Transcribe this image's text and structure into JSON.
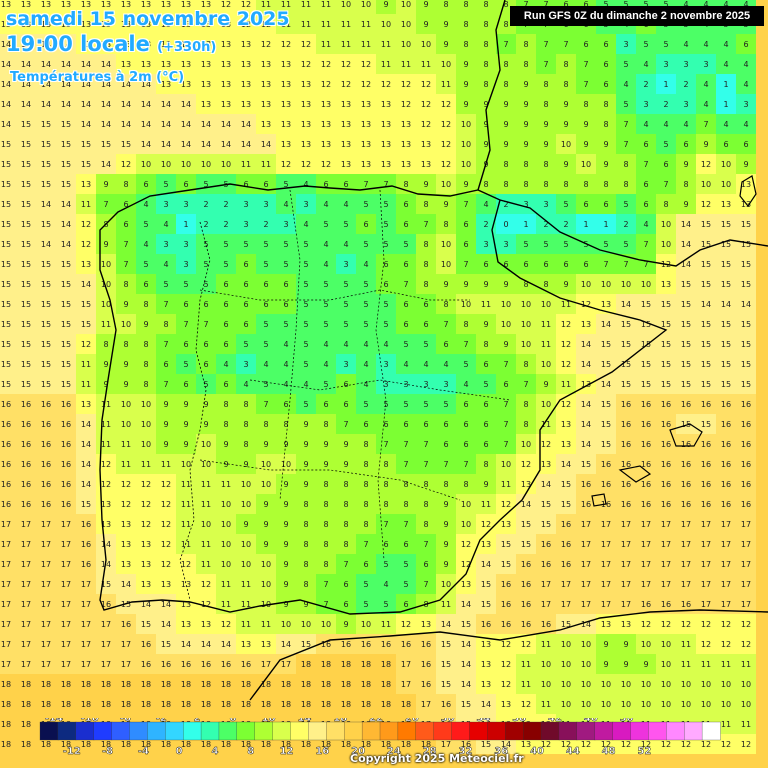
{
  "header": {
    "date": "samedi 15 novembre 2025",
    "time": "19:00 locale",
    "offset": "(+330h)",
    "variable": "Températures à 2m (°C)"
  },
  "run_label": "Run GFS 0Z du dimanche 2 novembre 2025",
  "copyright": "Copyright 2025 Meteociel.fr",
  "legend": {
    "top_labels": [
      "-14",
      "-10",
      "-6",
      "-2",
      "2",
      "6",
      "10",
      "14",
      "18",
      "22",
      "26",
      "30",
      "34",
      "38",
      "42",
      "46",
      "50"
    ],
    "bottom_labels": [
      "-12",
      "-8",
      "-4",
      "0",
      "4",
      "8",
      "12",
      "16",
      "20",
      "24",
      "28",
      "32",
      "36",
      "40",
      "44",
      "48",
      "52"
    ],
    "colors": [
      "#0a1050",
      "#0d2a80",
      "#1a2ecf",
      "#1f3cff",
      "#2f5fff",
      "#2f8cff",
      "#2fb4ff",
      "#33d6ff",
      "#33ffea",
      "#33ffb0",
      "#4cff66",
      "#7cff33",
      "#aeff33",
      "#d9ff4c",
      "#ffff66",
      "#fff08a",
      "#ffe066",
      "#ffd24a",
      "#ffb833",
      "#ff9a1a",
      "#ff7a00",
      "#ff5a1a",
      "#ff3a1a",
      "#ff1a1a",
      "#e60000",
      "#cc0000",
      "#a00000",
      "#880000",
      "#700a2a",
      "#88105a",
      "#a01a80",
      "#c01aa0",
      "#d81ac0",
      "#ee33dd",
      "#ff55ee",
      "#ff88ff",
      "#ffaaff",
      "#ffffff"
    ]
  },
  "field": {
    "rows": [
      "13 13 13 13 13 13 13 13 13 13 13 12 12 11 11 11 11 10 10 9 10 9 8 8 8 8 7 7 6 6 5 5 5 5 4 4 4 4",
      "13 13 13 13 13 13 13 13 13 13 13 13 12 12 11 11 11 11 11 10 10 9 9 8 8 8 7 7 6 6 5 4 6 5 5 4 5 5",
      "14 14 14 14 13 13 13 13 13 13 13 13 13 12 12 12 11 11 11 11 10 10 9 8 8 7 8 7 7 6 6 3 5 5 4 4 4 6",
      "14 14 14 14 14 14 13 13 13 13 13 13 13 13 13 12 12 12 12 11 11 11 10 9 8 8 8 7 8 7 6 5 4 3 3 3 4 4",
      "14 14 14 14 14 14 14 14 13 13 13 13 13 13 13 13 12 12 12 12 12 12 11 9 8 8 9 8 8 7 6 4 2 1 2 4 1 4",
      "14 14 14 14 14 14 14 14 14 14 13 13 13 13 13 13 13 13 13 13 12 12 12 9 9 9 9 8 9 8 8 5 3 2 3 4 1 3",
      "14 15 15 15 14 14 14 14 14 14 14 14 14 13 13 13 13 13 13 13 13 12 12 10 9 9 9 9 9 9 8 7 4 4 4 7 4 4",
      "15 15 15 15 15 15 15 14 14 14 14 14 14 14 13 13 13 13 13 13 13 13 12 10 9 9 9 9 10 9 9 7 6 5 6 9 6 6",
      "15 15 15 15 15 14 12 10 10 10 10 10 11 11 12 12 12 13 13 13 13 13 12 10 9 8 8 8 9 10 9 8 7 6 9 12 10 9",
      "15 15 15 15 13 9 8 6 5 6 5 5 6 6 5 4 6 6 7 7 8 9 10 9 8 8 8 8 8 8 8 8 6 7 8 10 10 13",
      "15 15 14 14 11 7 6 4 3 3 2 2 3 3 4 3 4 4 5 5 6 8 9 7 4 2 3 3 5 6 6 5 6 8 9 12 13 13",
      "15 15 15 14 12 8 6 5 4 1 2 2 3 2 3 4 5 5 6 5 6 7 8 6 2 0 1 2 2 1 1 2 4 10 14 15 15 15",
      "15 15 14 14 12 9 7 4 3 3 5 5 5 5 5 5 4 4 5 5 5 8 10 6 3 3 5 5 5 5 5 5 7 10 14 15 15 15",
      "15 15 15 15 13 10 7 5 4 3 5 5 6 5 5 5 4 3 4 6 6 8 10 7 6 6 6 6 6 6 7 7 7 12 14 15 15 15",
      "15 15 15 15 14 10 8 6 5 5 5 6 6 6 6 5 5 5 5 6 7 8 9 9 9 9 8 8 9 10 10 10 10 13 15 15 15 15",
      "15 15 15 15 15 10 9 8 7 6 6 6 6 6 6 5 5 5 5 5 6 6 8 10 11 10 10 10 11 12 13 14 15 15 15 14 14 14",
      "15 15 15 15 15 11 10 9 8 7 7 6 6 5 5 5 5 5 5 5 6 6 7 8 9 10 10 11 12 13 14 15 15 15 15 15 15 15",
      "15 15 15 15 12 8 8 8 7 6 6 6 5 5 4 5 4 4 4 4 5 5 6 7 8 9 10 11 12 14 15 15 15 15 15 15 15 15",
      "15 15 15 15 11 9 9 8 6 5 6 4 3 4 4 5 4 3 4 3 4 4 4 5 6 7 8 10 12 14 15 15 15 15 15 15 15 15",
      "15 15 15 15 11 9 9 8 7 6 5 6 4 5 4 4 5 6 4 3 3 3 3 4 5 6 7 9 11 13 14 15 15 15 15 15 15 15",
      "16 16 16 16 13 11 10 10 9 9 9 8 8 7 6 5 6 6 5 5 5 5 5 6 6 7 8 10 12 14 15 16 16 16 16 16 16 16",
      "16 16 16 16 14 11 10 10 9 9 9 8 8 8 8 9 8 7 6 6 6 6 6 6 6 7 8 11 13 14 15 16 16 16 15 15 16 16",
      "16 16 16 16 14 11 11 10 9 9 10 9 8 9 9 9 9 9 8 7 7 7 6 6 6 7 10 12 13 14 15 16 16 16 16 16 16 16",
      "16 16 16 16 14 12 11 11 11 10 10 9 9 10 10 9 9 9 8 8 7 7 7 7 8 10 12 13 14 15 16 16 16 16 16 16 16 16",
      "16 16 16 16 14 12 12 12 12 11 11 11 10 10 9 9 8 8 8 8 8 8 8 8 9 11 13 14 15 16 16 16 16 16 16 16 16 16",
      "16 16 16 16 15 13 12 12 12 11 11 10 10 9 9 8 8 8 8 8 8 8 9 10 11 12 14 15 15 16 16 16 16 16 16 16 16 16",
      "17 17 17 17 16 13 13 12 12 11 10 10 9 9 9 8 8 8 8 7 7 8 9 10 12 13 15 15 16 17 17 17 17 17 17 17 17 17",
      "17 17 17 17 16 14 13 13 12 11 11 10 10 9 9 8 8 8 7 6 6 7 9 12 13 15 15 16 16 17 17 17 17 17 17 17 17 17",
      "17 17 17 17 16 14 13 13 12 12 11 10 10 10 9 8 8 7 6 5 5 6 9 12 14 15 16 16 16 17 17 17 17 17 17 17 17 17",
      "17 17 17 17 17 15 14 13 13 13 12 11 11 10 9 8 7 6 5 4 5 7 10 13 15 16 16 17 17 17 17 17 17 17 17 17 17 17",
      "17 17 17 17 17 16 15 14 14 13 12 11 11 10 9 9 7 6 5 5 6 8 11 14 15 16 16 17 17 17 17 17 16 16 16 17 17 17",
      "17 17 17 17 17 17 16 15 14 13 13 12 11 11 10 10 10 9 10 11 12 13 14 15 16 16 16 16 15 14 13 13 12 12 12 12 12 12",
      "17 17 17 17 17 17 17 16 15 14 14 14 13 13 14 15 16 16 16 16 16 16 15 14 13 12 12 11 10 10 9 9 10 10 11 12 12 12",
      "17 17 17 17 17 17 17 16 16 16 16 16 16 17 17 18 18 18 18 18 17 16 15 14 13 12 11 10 10 10 9 9 9 10 11 11 11 11",
      "18 18 18 18 18 18 18 18 18 18 18 18 18 18 18 18 18 18 18 18 17 16 15 14 13 12 11 10 10 10 10 10 10 10 10 10 10 10",
      "18 18 18 18 18 18 18 18 18 18 18 18 18 18 18 18 18 18 18 18 18 17 16 15 14 13 12 11 10 10 10 10 10 10 10 10 10 10",
      "18 18 18 18 18 18 18 18 18 18 18 18 18 18 18 18 18 18 18 18 18 17 16 15 14 13 12 12 11 11 11 11 11 11 11 11 11 11",
      "18 18 18 18 18 18 18 18 18 18 18 18 18 18 18 18 18 18 18 18 18 18 17 16 15 14 13 12 12 12 12 12 12 12 12 12 12 12"
    ]
  }
}
